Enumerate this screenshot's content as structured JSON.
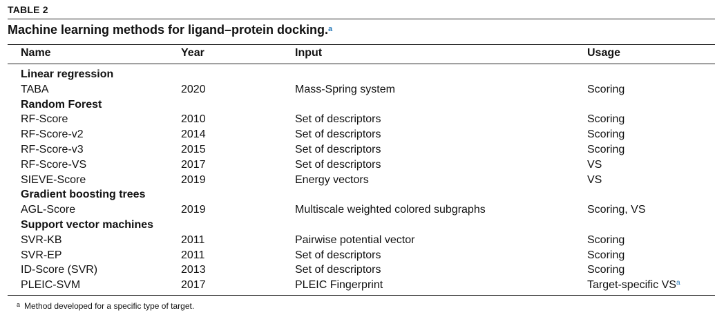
{
  "table_label": "TABLE 2",
  "caption": {
    "text": "Machine learning methods for ligand–protein docking.",
    "marker": "a"
  },
  "columns": [
    "Name",
    "Year",
    "Input",
    "Usage"
  ],
  "groups": [
    {
      "title": "Linear regression",
      "rows": [
        {
          "name": "TABA",
          "year": "2020",
          "input": "Mass-Spring system",
          "usage": "Scoring"
        }
      ]
    },
    {
      "title": "Random Forest",
      "rows": [
        {
          "name": "RF-Score",
          "year": "2010",
          "input": "Set of descriptors",
          "usage": "Scoring"
        },
        {
          "name": "RF-Score-v2",
          "year": "2014",
          "input": "Set of descriptors",
          "usage": "Scoring"
        },
        {
          "name": "RF-Score-v3",
          "year": "2015",
          "input": "Set of descriptors",
          "usage": "Scoring"
        },
        {
          "name": "RF-Score-VS",
          "year": "2017",
          "input": "Set of descriptors",
          "usage": "VS"
        },
        {
          "name": "SIEVE-Score",
          "year": "2019",
          "input": "Energy vectors",
          "usage": "VS"
        }
      ]
    },
    {
      "title": "Gradient boosting trees",
      "rows": [
        {
          "name": "AGL-Score",
          "year": "2019",
          "input": "Multiscale weighted colored subgraphs",
          "usage": "Scoring, VS"
        }
      ]
    },
    {
      "title": "Support vector machines",
      "rows": [
        {
          "name": "SVR-KB",
          "year": "2011",
          "input": "Pairwise potential vector",
          "usage": "Scoring"
        },
        {
          "name": "SVR-EP",
          "year": "2011",
          "input": "Set of descriptors",
          "usage": "Scoring"
        },
        {
          "name": "ID-Score (SVR)",
          "year": "2013",
          "input": "Set of descriptors",
          "usage": "Scoring"
        },
        {
          "name": "PLEIC-SVM",
          "year": "2017",
          "input": "PLEIC Fingerprint",
          "usage": "Target-specific VS",
          "usage_marker": "a"
        }
      ]
    }
  ],
  "footnote": {
    "marker": "a",
    "text": "Method developed for a specific type of target."
  },
  "colors": {
    "marker": "#2a7ab8",
    "rule": "#222222",
    "text": "#111111"
  }
}
